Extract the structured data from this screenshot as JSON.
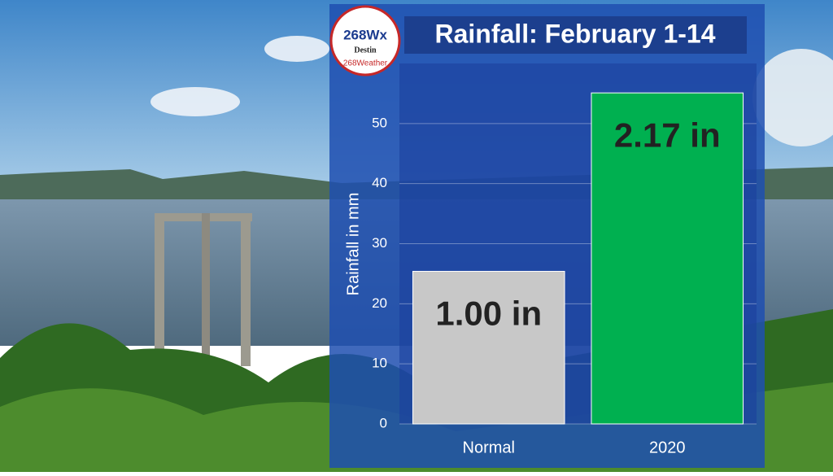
{
  "logo": {
    "brand": "268Wx",
    "city": "Destin",
    "handle": "268Weather"
  },
  "chart_data": {
    "type": "bar",
    "title": "Rainfall: February 1-14",
    "y_label": "Rainfall in mm",
    "categories": [
      "Normal",
      "2020"
    ],
    "values": [
      25.4,
      55.1
    ],
    "value_labels": [
      "1.00 in",
      "2.17 in"
    ],
    "colors": [
      "#c8c8c8",
      "#00b050"
    ],
    "ylim": [
      0,
      60
    ],
    "yticks": [
      0,
      10,
      20,
      30,
      40,
      50
    ],
    "grid": true
  }
}
